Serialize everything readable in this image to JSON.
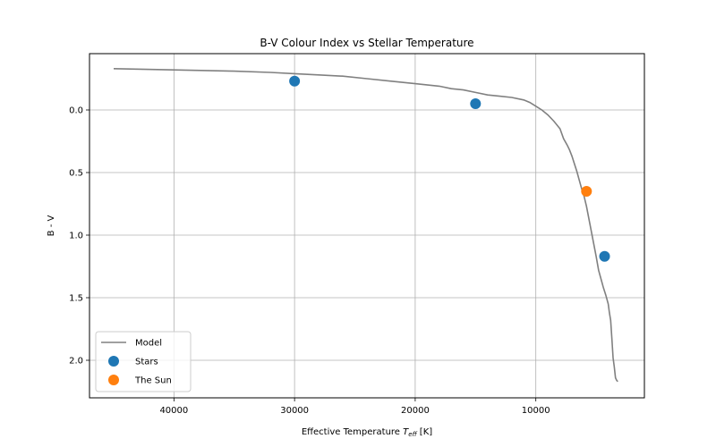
{
  "chart_data": {
    "type": "line",
    "title": "B-V Colour Index vs Stellar Temperature",
    "xlabel_prefix": "Effective Temperature ",
    "xlabel_symbol": "T",
    "xlabel_subscript": "eff",
    "xlabel_suffix": " [K]",
    "ylabel": "B - V",
    "xlim": [
      47000,
      1000
    ],
    "ylim": [
      2.3,
      -0.45
    ],
    "x_ticks": [
      40000,
      30000,
      20000,
      10000
    ],
    "x_tick_labels": [
      "40000",
      "30000",
      "20000",
      "10000"
    ],
    "y_ticks": [
      0.0,
      0.5,
      1.0,
      1.5,
      2.0
    ],
    "y_tick_labels": [
      "0.0",
      "0.5",
      "1.0",
      "1.5",
      "2.0"
    ],
    "grid": true,
    "legend_position": "lower-left",
    "series": [
      {
        "name": "Model",
        "kind": "line",
        "color": "#808080",
        "x": [
          45000,
          40000,
          35000,
          32000,
          30000,
          28000,
          26000,
          24000,
          22000,
          20000,
          18000,
          17000,
          16000,
          15000,
          14000,
          13000,
          12000,
          11000,
          10500,
          10000,
          9500,
          9000,
          8500,
          8000,
          7700,
          7400,
          7200,
          7000,
          6800,
          6600,
          6400,
          6200,
          6000,
          5800,
          5600,
          5400,
          5200,
          5000,
          4800,
          4600,
          4400,
          4200,
          4000,
          3900,
          3800,
          3700,
          3650,
          3600,
          3500,
          3400,
          3300,
          3200
        ],
        "y": [
          -0.33,
          -0.32,
          -0.31,
          -0.3,
          -0.29,
          -0.28,
          -0.27,
          -0.25,
          -0.23,
          -0.21,
          -0.19,
          -0.17,
          -0.16,
          -0.14,
          -0.12,
          -0.11,
          -0.1,
          -0.08,
          -0.06,
          -0.03,
          0.0,
          0.04,
          0.09,
          0.15,
          0.23,
          0.28,
          0.32,
          0.37,
          0.43,
          0.49,
          0.56,
          0.63,
          0.69,
          0.77,
          0.87,
          0.97,
          1.07,
          1.17,
          1.28,
          1.35,
          1.42,
          1.48,
          1.55,
          1.62,
          1.68,
          1.82,
          1.9,
          1.98,
          2.05,
          2.14,
          2.16,
          2.17
        ]
      },
      {
        "name": "Stars",
        "kind": "scatter",
        "color": "#1f77b4",
        "x": [
          30000,
          15000,
          4300
        ],
        "y": [
          -0.23,
          -0.05,
          1.17
        ]
      },
      {
        "name": "The Sun",
        "kind": "scatter",
        "color": "#ff7f0e",
        "x": [
          5800
        ],
        "y": [
          0.65
        ]
      }
    ]
  }
}
